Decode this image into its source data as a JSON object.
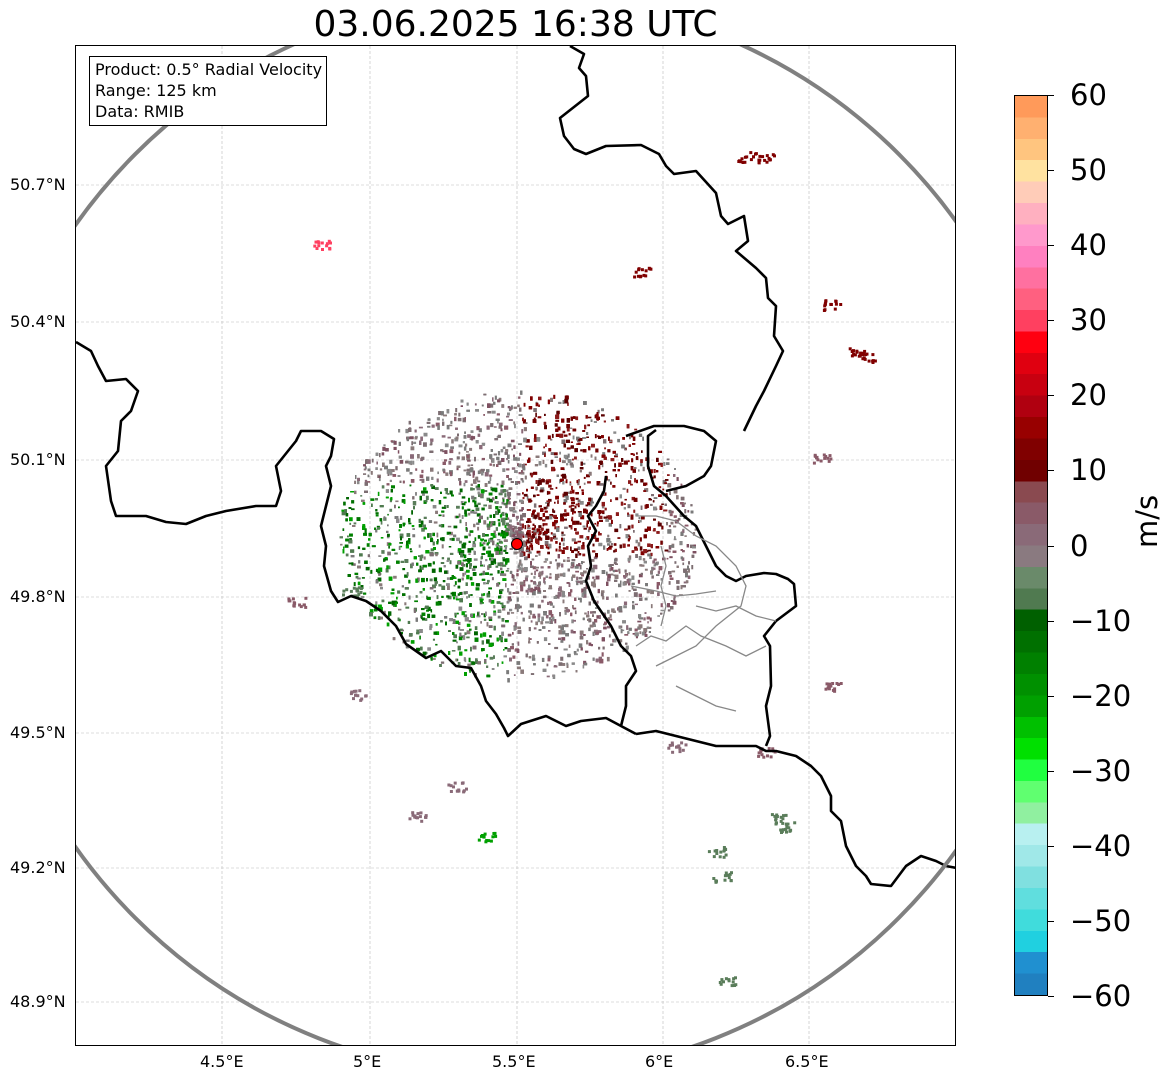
{
  "title": "03.06.2025 16:38 UTC",
  "info": {
    "product": "Product: 0.5° Radial Velocity",
    "range": "Range: 125 km",
    "data": "Data: RMIB"
  },
  "axes": {
    "lon_ticks": [
      "4.5°E",
      "5°E",
      "5.5°E",
      "6°E",
      "6.5°E"
    ],
    "lat_ticks": [
      "50.7°N",
      "50.4°N",
      "50.1°N",
      "49.8°N",
      "49.5°N",
      "49.2°N",
      "48.9°N"
    ]
  },
  "colorbar": {
    "label": "m/s",
    "ticks": [
      "60",
      "50",
      "40",
      "30",
      "20",
      "10",
      "0",
      "−10",
      "−20",
      "−30",
      "−40",
      "−50",
      "−60"
    ],
    "colors": [
      "#ff9a5a",
      "#ffb070",
      "#ffc57f",
      "#ffe2a0",
      "#ffccb8",
      "#ffb0c0",
      "#ff99cc",
      "#ff80c0",
      "#ff70a0",
      "#ff6080",
      "#ff4060",
      "#ff0010",
      "#e00010",
      "#c80010",
      "#b00010",
      "#980000",
      "#800000",
      "#700000",
      "#8a4a50",
      "#8a5a68",
      "#8a6a78",
      "#8a7a80",
      "#6a8a6a",
      "#507a50",
      "#006000",
      "#007000",
      "#008000",
      "#009000",
      "#00a000",
      "#00c000",
      "#00e000",
      "#20ff40",
      "#60ff70",
      "#90f0a0",
      "#b8f0f0",
      "#a0e8e8",
      "#80e0e0",
      "#60dede",
      "#40dcdc",
      "#20d0e0",
      "#2090d0",
      "#2080c0"
    ],
    "min": -60,
    "max": 60
  },
  "radar_site": {
    "lon": 5.505,
    "lat": 49.914,
    "color": "#ff0000"
  },
  "range_ring_color": "#808080"
}
